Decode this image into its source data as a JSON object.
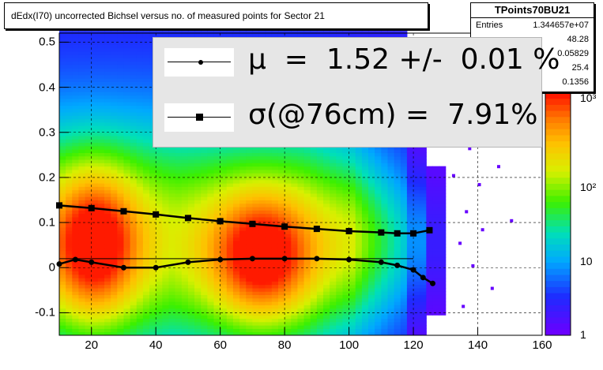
{
  "title": "dEdx(I70) uncorrected Bichsel versus no. of measured points for Sector 21",
  "stats": {
    "name": "TPoints70BU21",
    "rows": [
      {
        "label": "Entries",
        "value": "1.344657e+07"
      },
      {
        "label": "",
        "value": "48.28"
      },
      {
        "label": "",
        "value": "0.05829"
      },
      {
        "label": "",
        "value": "25.4"
      },
      {
        "label": "",
        "value": "0.1356"
      }
    ]
  },
  "legend": {
    "mu_text": "μ  =  1.52 +/-  0.01 %",
    "sigma_text": "σ(@76cm) =  7.91%"
  },
  "colors": {
    "mean_marker": "#000000",
    "sigma_marker": "#000000",
    "hot": "#ff1a00",
    "cold": "#6600ff"
  },
  "chart_data": {
    "type": "heatmap",
    "xlim": [
      10,
      160
    ],
    "ylim": [
      -0.15,
      0.52
    ],
    "x_ticks": [
      "20",
      "40",
      "60",
      "80",
      "100",
      "120",
      "140",
      "160"
    ],
    "y_ticks": [
      "-0.1",
      "0",
      "0.1",
      "0.2",
      "0.3",
      "0.4",
      "0.5"
    ],
    "z_scale": "log",
    "z_ticks": [
      "1",
      "10",
      "10²",
      "10³"
    ],
    "z_range": [
      1,
      2000
    ],
    "series": [
      {
        "marker": "square",
        "x": [
          10,
          20,
          30,
          40,
          50,
          60,
          70,
          80,
          90,
          100,
          110,
          115,
          120,
          125
        ],
        "y": [
          0.138,
          0.132,
          0.125,
          0.118,
          0.11,
          0.103,
          0.097,
          0.091,
          0.086,
          0.081,
          0.078,
          0.076,
          0.076,
          0.083
        ]
      },
      {
        "marker": "dot",
        "x": [
          10,
          15,
          20,
          30,
          40,
          50,
          60,
          70,
          80,
          90,
          100,
          110,
          115,
          120,
          123,
          126
        ],
        "y": [
          0.008,
          0.018,
          0.012,
          0.0,
          0.0,
          0.012,
          0.018,
          0.02,
          0.02,
          0.02,
          0.018,
          0.012,
          0.005,
          -0.005,
          -0.022,
          -0.035
        ]
      }
    ]
  }
}
